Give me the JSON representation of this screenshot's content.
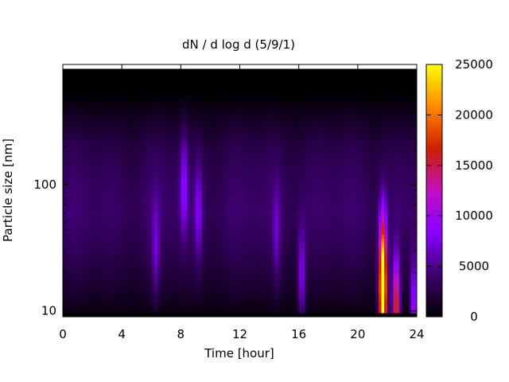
{
  "chart_data": {
    "type": "heatmap",
    "title": "dN / d log d (5/9/1)",
    "xlabel": "Time [hour]",
    "ylabel": "Particle size [nm]",
    "x_range": [
      0,
      24
    ],
    "x_ticks": [
      0,
      4,
      8,
      12,
      16,
      20,
      24
    ],
    "x_tick_labels": [
      "0",
      "4",
      "8",
      "12",
      "16",
      "20",
      "24"
    ],
    "y_scale": "log",
    "y_range": [
      9,
      900
    ],
    "y_ticks": [
      10,
      100
    ],
    "y_tick_labels": [
      "10",
      "100"
    ],
    "colorbar": {
      "range": [
        0,
        25000
      ],
      "ticks": [
        0,
        5000,
        10000,
        15000,
        20000,
        25000
      ],
      "tick_labels": [
        "0",
        "5000",
        "10000",
        "15000",
        "20000",
        "25000"
      ],
      "palette": [
        "#000000",
        "#3d006e",
        "#8a00ff",
        "#c010c0",
        "#cc2000",
        "#ff8a00",
        "#ffff00"
      ]
    },
    "background_concentration_by_size": [
      {
        "size_nm": 10,
        "value": 800
      },
      {
        "size_nm": 15,
        "value": 2000
      },
      {
        "size_nm": 30,
        "value": 3500
      },
      {
        "size_nm": 60,
        "value": 4500
      },
      {
        "size_nm": 100,
        "value": 4200
      },
      {
        "size_nm": 200,
        "value": 3200
      },
      {
        "size_nm": 350,
        "value": 1500
      },
      {
        "size_nm": 500,
        "value": 300
      }
    ],
    "events": [
      {
        "time_h": 6.3,
        "size_nm": 30,
        "value": 4000
      },
      {
        "time_h": 8.2,
        "size_nm": 100,
        "value": 5500
      },
      {
        "time_h": 9.2,
        "size_nm": 60,
        "value": 4500
      },
      {
        "time_h": 14.5,
        "size_nm": 40,
        "value": 3500
      },
      {
        "time_h": 16.2,
        "size_nm": 18,
        "value": 6000
      },
      {
        "time_h": 21.7,
        "size_nm": 12,
        "value": 25000
      },
      {
        "time_h": 21.7,
        "size_nm": 30,
        "value": 12000
      },
      {
        "time_h": 22.6,
        "size_nm": 10,
        "value": 17000
      },
      {
        "time_h": 23.8,
        "size_nm": 10,
        "value": 9000
      }
    ]
  }
}
